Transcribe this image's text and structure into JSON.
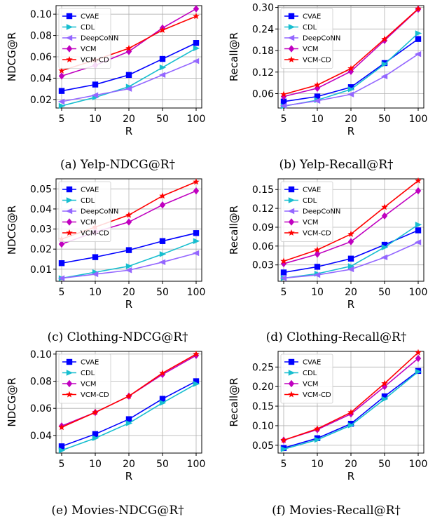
{
  "chart_data": [
    {
      "type": "line",
      "caption": "(a) Yelp-NDCG@R†",
      "xlabel": "R",
      "ylabel": "NDCG@R",
      "categories": [
        "5",
        "10",
        "20",
        "50",
        "100"
      ],
      "yticks": [
        "0.02",
        "0.04",
        "0.06",
        "0.08",
        "0.10"
      ],
      "ylim": [
        0.012,
        0.108
      ],
      "grid": true,
      "legend": "upper-left",
      "series": [
        {
          "name": "CVAE",
          "values": [
            0.028,
            0.034,
            0.043,
            0.058,
            0.073
          ]
        },
        {
          "name": "CDL",
          "values": [
            0.014,
            0.022,
            0.032,
            0.05,
            0.068
          ]
        },
        {
          "name": "DeepCoNN",
          "values": [
            0.018,
            0.024,
            0.03,
            0.043,
            0.056
          ]
        },
        {
          "name": "VCM",
          "values": [
            0.042,
            0.052,
            0.065,
            0.087,
            0.105
          ]
        },
        {
          "name": "VCM-CD",
          "values": [
            0.047,
            0.057,
            0.068,
            0.085,
            0.098
          ]
        }
      ]
    },
    {
      "type": "line",
      "caption": "(b) Yelp-Recall@R†",
      "xlabel": "R",
      "ylabel": "Recall@R",
      "categories": [
        "5",
        "10",
        "20",
        "50",
        "100"
      ],
      "yticks": [
        "0.06",
        "0.12",
        "0.18",
        "0.24",
        "0.30"
      ],
      "ylim": [
        0.02,
        0.305
      ],
      "grid": true,
      "legend": "upper-left",
      "series": [
        {
          "name": "CVAE",
          "values": [
            0.038,
            0.052,
            0.078,
            0.145,
            0.212
          ]
        },
        {
          "name": "CDL",
          "values": [
            0.025,
            0.042,
            0.072,
            0.142,
            0.228
          ]
        },
        {
          "name": "DeepCoNN",
          "values": [
            0.026,
            0.04,
            0.058,
            0.108,
            0.17
          ]
        },
        {
          "name": "VCM",
          "values": [
            0.052,
            0.075,
            0.122,
            0.208,
            0.295
          ]
        },
        {
          "name": "VCM-CD",
          "values": [
            0.058,
            0.084,
            0.13,
            0.212,
            0.296
          ]
        }
      ]
    },
    {
      "type": "line",
      "caption": "(c) Clothing-NDCG@R†",
      "xlabel": "R",
      "ylabel": "NDCG@R",
      "categories": [
        "5",
        "10",
        "20",
        "50",
        "100"
      ],
      "yticks": [
        "0.01",
        "0.02",
        "0.03",
        "0.04",
        "0.05"
      ],
      "ylim": [
        0.004,
        0.055
      ],
      "grid": true,
      "legend": "upper-left",
      "series": [
        {
          "name": "CVAE",
          "values": [
            0.013,
            0.016,
            0.0195,
            0.024,
            0.028
          ]
        },
        {
          "name": "CDL",
          "values": [
            0.0055,
            0.0085,
            0.0115,
            0.0175,
            0.024
          ]
        },
        {
          "name": "DeepCoNN",
          "values": [
            0.0055,
            0.0075,
            0.0095,
            0.0135,
            0.018
          ]
        },
        {
          "name": "VCM",
          "values": [
            0.0225,
            0.0285,
            0.0335,
            0.042,
            0.049
          ]
        },
        {
          "name": "VCM-CD",
          "values": [
            0.025,
            0.031,
            0.037,
            0.0465,
            0.0535
          ]
        }
      ]
    },
    {
      "type": "line",
      "caption": "(d) Clothing-Recall@R†",
      "xlabel": "R",
      "ylabel": "Recall@R",
      "categories": [
        "5",
        "10",
        "20",
        "50",
        "100"
      ],
      "yticks": [
        "0.03",
        "0.06",
        "0.09",
        "0.12",
        "0.15"
      ],
      "ylim": [
        0.004,
        0.167
      ],
      "grid": true,
      "legend": "upper-left",
      "series": [
        {
          "name": "CVAE",
          "values": [
            0.018,
            0.027,
            0.04,
            0.062,
            0.085
          ]
        },
        {
          "name": "CDL",
          "values": [
            0.009,
            0.016,
            0.028,
            0.058,
            0.094
          ]
        },
        {
          "name": "DeepCoNN",
          "values": [
            0.009,
            0.014,
            0.023,
            0.042,
            0.066
          ]
        },
        {
          "name": "VCM",
          "values": [
            0.032,
            0.047,
            0.067,
            0.108,
            0.148
          ]
        },
        {
          "name": "VCM-CD",
          "values": [
            0.036,
            0.054,
            0.079,
            0.122,
            0.164
          ]
        }
      ]
    },
    {
      "type": "line",
      "caption": "(e) Movies-NDCG@R†",
      "xlabel": "R",
      "ylabel": "NDCG@R",
      "categories": [
        "5",
        "10",
        "20",
        "50",
        "100"
      ],
      "yticks": [
        "0.04",
        "0.06",
        "0.08",
        "0.10"
      ],
      "ylim": [
        0.027,
        0.102
      ],
      "grid": true,
      "legend": "upper-left",
      "series": [
        {
          "name": "CVAE",
          "values": [
            0.032,
            0.041,
            0.052,
            0.067,
            0.08
          ]
        },
        {
          "name": "CDL",
          "values": [
            0.029,
            0.038,
            0.049,
            0.064,
            0.078
          ]
        },
        {
          "name": "VCM",
          "values": [
            0.047,
            0.057,
            0.069,
            0.085,
            0.099
          ]
        },
        {
          "name": "VCM-CD",
          "values": [
            0.046,
            0.057,
            0.069,
            0.086,
            0.1
          ]
        }
      ]
    },
    {
      "type": "line",
      "caption": "(f) Movies-Recall@R†",
      "xlabel": "R",
      "ylabel": "Recall@R",
      "categories": [
        "5",
        "10",
        "20",
        "50",
        "100"
      ],
      "yticks": [
        "0.05",
        "0.10",
        "0.15",
        "0.20",
        "0.25"
      ],
      "ylim": [
        0.03,
        0.29
      ],
      "grid": true,
      "legend": "upper-left",
      "series": [
        {
          "name": "CVAE",
          "values": [
            0.043,
            0.068,
            0.105,
            0.175,
            0.24
          ]
        },
        {
          "name": "CDL",
          "values": [
            0.04,
            0.064,
            0.101,
            0.168,
            0.238
          ]
        },
        {
          "name": "VCM",
          "values": [
            0.063,
            0.09,
            0.13,
            0.2,
            0.272
          ]
        },
        {
          "name": "VCM-CD",
          "values": [
            0.063,
            0.092,
            0.134,
            0.208,
            0.287
          ]
        }
      ]
    }
  ],
  "series_styles": {
    "CVAE": {
      "color": "#0000ff",
      "marker": "square"
    },
    "CDL": {
      "color": "#17becf",
      "marker": "triangle-right"
    },
    "DeepCoNN": {
      "color": "#9467ff",
      "marker": "triangle-left"
    },
    "VCM": {
      "color": "#c000c0",
      "marker": "diamond"
    },
    "VCM-CD": {
      "color": "#ff0000",
      "marker": "star"
    }
  }
}
